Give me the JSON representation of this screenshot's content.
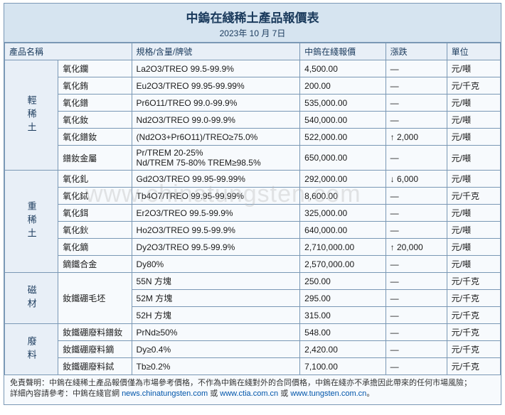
{
  "header": {
    "title": "中鎢在綫稀土產品報價表",
    "date": "2023年 10 月 7日"
  },
  "columns": {
    "name": "產品名稱",
    "spec": "規格/含量/牌號",
    "price": "中鎢在綫報價",
    "change": "漲跌",
    "unit": "單位"
  },
  "groups": [
    {
      "category": "輕稀土",
      "rows": [
        {
          "name": "氧化鑭",
          "spec": "La2O3/TREO 99.5-99.9%",
          "price": "4,500.00",
          "change": "—",
          "unit": "元/噸"
        },
        {
          "name": "氧化銪",
          "spec": "Eu2O3/TREO 99.95-99.99%",
          "price": "200.00",
          "change": "—",
          "unit": "元/千克"
        },
        {
          "name": "氧化鐠",
          "spec": "Pr6O11/TREO 99.0-99.9%",
          "price": "535,000.00",
          "change": "—",
          "unit": "元/噸"
        },
        {
          "name": "氧化釹",
          "spec": "Nd2O3/TREO 99.0-99.9%",
          "price": "540,000.00",
          "change": "—",
          "unit": "元/噸"
        },
        {
          "name": "氧化鐠釹",
          "spec": "(Nd2O3+Pr6O11)/TREO≥75.0%",
          "price": "522,000.00",
          "change": "↑ 2,000",
          "unit": "元/噸"
        },
        {
          "name": "鐠釹金屬",
          "spec": "Pr/TREM 20-25%\nNd/TREM 75-80% TREM≥98.5%",
          "price": "650,000.00",
          "change": "—",
          "unit": "元/噸"
        }
      ]
    },
    {
      "category": "重稀土",
      "rows": [
        {
          "name": "氧化釓",
          "spec": "Gd2O3/TREO 99.95-99.99%",
          "price": "292,000.00",
          "change": "↓ 6,000",
          "unit": "元/噸"
        },
        {
          "name": "氧化鋱",
          "spec": "Tb4O7/TREO 99.95-99.99%",
          "price": "8,600.00",
          "change": "—",
          "unit": "元/千克"
        },
        {
          "name": "氧化鉺",
          "spec": "Er2O3/TREO 99.5-99.9%",
          "price": "325,000.00",
          "change": "—",
          "unit": "元/噸"
        },
        {
          "name": "氧化鈥",
          "spec": "Ho2O3/TREO 99.5-99.9%",
          "price": "640,000.00",
          "change": "—",
          "unit": "元/噸"
        },
        {
          "name": "氧化鏑",
          "spec": "Dy2O3/TREO 99.5-99.9%",
          "price": "2,710,000.00",
          "change": "↑ 20,000",
          "unit": "元/噸"
        },
        {
          "name": "鏑鐵合金",
          "spec": "Dy80%",
          "price": "2,570,000.00",
          "change": "—",
          "unit": "元/噸"
        }
      ]
    },
    {
      "category": "磁材",
      "rows": [
        {
          "name": "釹鐵硼毛坯",
          "name_rowspan": 3,
          "spec": "55N 方塊",
          "price": "250.00",
          "change": "—",
          "unit": "元/千克"
        },
        {
          "spec": "52M 方塊",
          "price": "295.00",
          "change": "—",
          "unit": "元/千克"
        },
        {
          "spec": "52H 方塊",
          "price": "315.00",
          "change": "—",
          "unit": "元/千克"
        }
      ]
    },
    {
      "category": "廢料",
      "rows": [
        {
          "name": "釹鐵硼廢料鐠釹",
          "spec": "PrNd≥50%",
          "price": "548.00",
          "change": "—",
          "unit": "元/千克"
        },
        {
          "name": "釹鐵硼廢料鏑",
          "spec": "Dy≥0.4%",
          "price": "2,420.00",
          "change": "—",
          "unit": "元/千克"
        },
        {
          "name": "釹鐵硼廢料鋱",
          "spec": "Tb≥0.2%",
          "price": "7,100.00",
          "change": "—",
          "unit": "元/千克"
        }
      ]
    }
  ],
  "footer": {
    "disclaimer_label": "免責聲明：",
    "disclaimer_text": "中鎢在綫稀土產品報價僅為市場參考價格，不作為中鎢在綫對外的合同價格，中鎢在綫亦不承擔因此帶來的任何市場風險；",
    "detail_label": "詳細內容請參考：",
    "detail_text": "中鎢在綫官網 ",
    "link1": "news.chinatungsten.com",
    "sep": " 或 ",
    "link2": "www.ctia.com.cn",
    "sep2": " 或 ",
    "link3": "www.tungsten.com.cn",
    "period": "。"
  },
  "watermark": "www.chinatungsten.com",
  "colors": {
    "border": "#7a98b5",
    "header_bg": "#d6e4f0",
    "th_bg": "#e8eff7",
    "cell_bg": "#f7fafd",
    "title_color": "#1a3a5c"
  }
}
